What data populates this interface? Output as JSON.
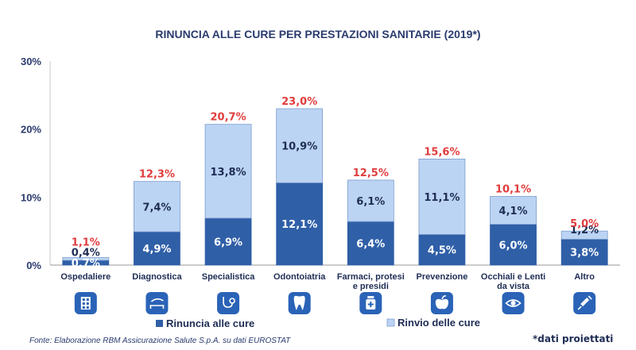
{
  "chart_data": {
    "type": "bar",
    "stacked": true,
    "title": "RINUNCIA ALLE CURE PER PRESTAZIONI SANITARIE (2019*)",
    "ylim": [
      0,
      30
    ],
    "yticks": [
      "0%",
      "10%",
      "20%",
      "30%"
    ],
    "ytick_values": [
      0,
      10,
      20,
      30
    ],
    "categories": [
      "Ospedaliere",
      "Diagnostica",
      "Specialistica",
      "Odontoiatria",
      "Farmaci, protesi e presidi",
      "Prevenzione",
      "Occhiali e Lenti da vista",
      "Altro"
    ],
    "category_lines": [
      [
        "Ospedaliere"
      ],
      [
        "Diagnostica"
      ],
      [
        "Specialistica"
      ],
      [
        "Odontoiatria"
      ],
      [
        "Farmaci, protesi",
        "e presidi"
      ],
      [
        "Prevenzione"
      ],
      [
        "Occhiali e Lenti",
        "da vista"
      ],
      [
        "Altro"
      ]
    ],
    "series": [
      {
        "name": "Rinuncia alle cure",
        "color": "#2f5fa7",
        "values": [
          0.7,
          4.9,
          6.9,
          12.1,
          6.4,
          4.5,
          6.0,
          3.8
        ],
        "labels": [
          "0,7%",
          "4,9%",
          "6,9%",
          "12,1%",
          "6,4%",
          "4,5%",
          "6,0%",
          "3,8%"
        ]
      },
      {
        "name": "Rinvio delle cure",
        "color": "#bcd4f3",
        "values": [
          0.4,
          7.4,
          13.8,
          10.9,
          6.1,
          11.1,
          4.1,
          1.2
        ],
        "labels": [
          "0,4%",
          "7,4%",
          "13,8%",
          "10,9%",
          "6,1%",
          "11,1%",
          "4,1%",
          "1,2%"
        ]
      }
    ],
    "totals": [
      1.1,
      12.3,
      20.7,
      23.0,
      12.5,
      15.6,
      10.1,
      5.0
    ],
    "total_labels": [
      "1,1%",
      "12,3%",
      "20,7%",
      "23,0%",
      "12,5%",
      "15,6%",
      "10,1%",
      "5,0%"
    ],
    "total_color": "#e03c3c",
    "grid": false,
    "legend_position": "bottom",
    "icons": [
      "hospital-icon",
      "xray-icon",
      "stethoscope-icon",
      "tooth-icon",
      "medicine-icon",
      "apple-icon",
      "eye-icon",
      "syringe-icon"
    ]
  },
  "source": "Fonte: Elaborazione RBM Assicurazione Salute S.p.A. su dati EUROSTAT",
  "note": "*dati proiettati"
}
